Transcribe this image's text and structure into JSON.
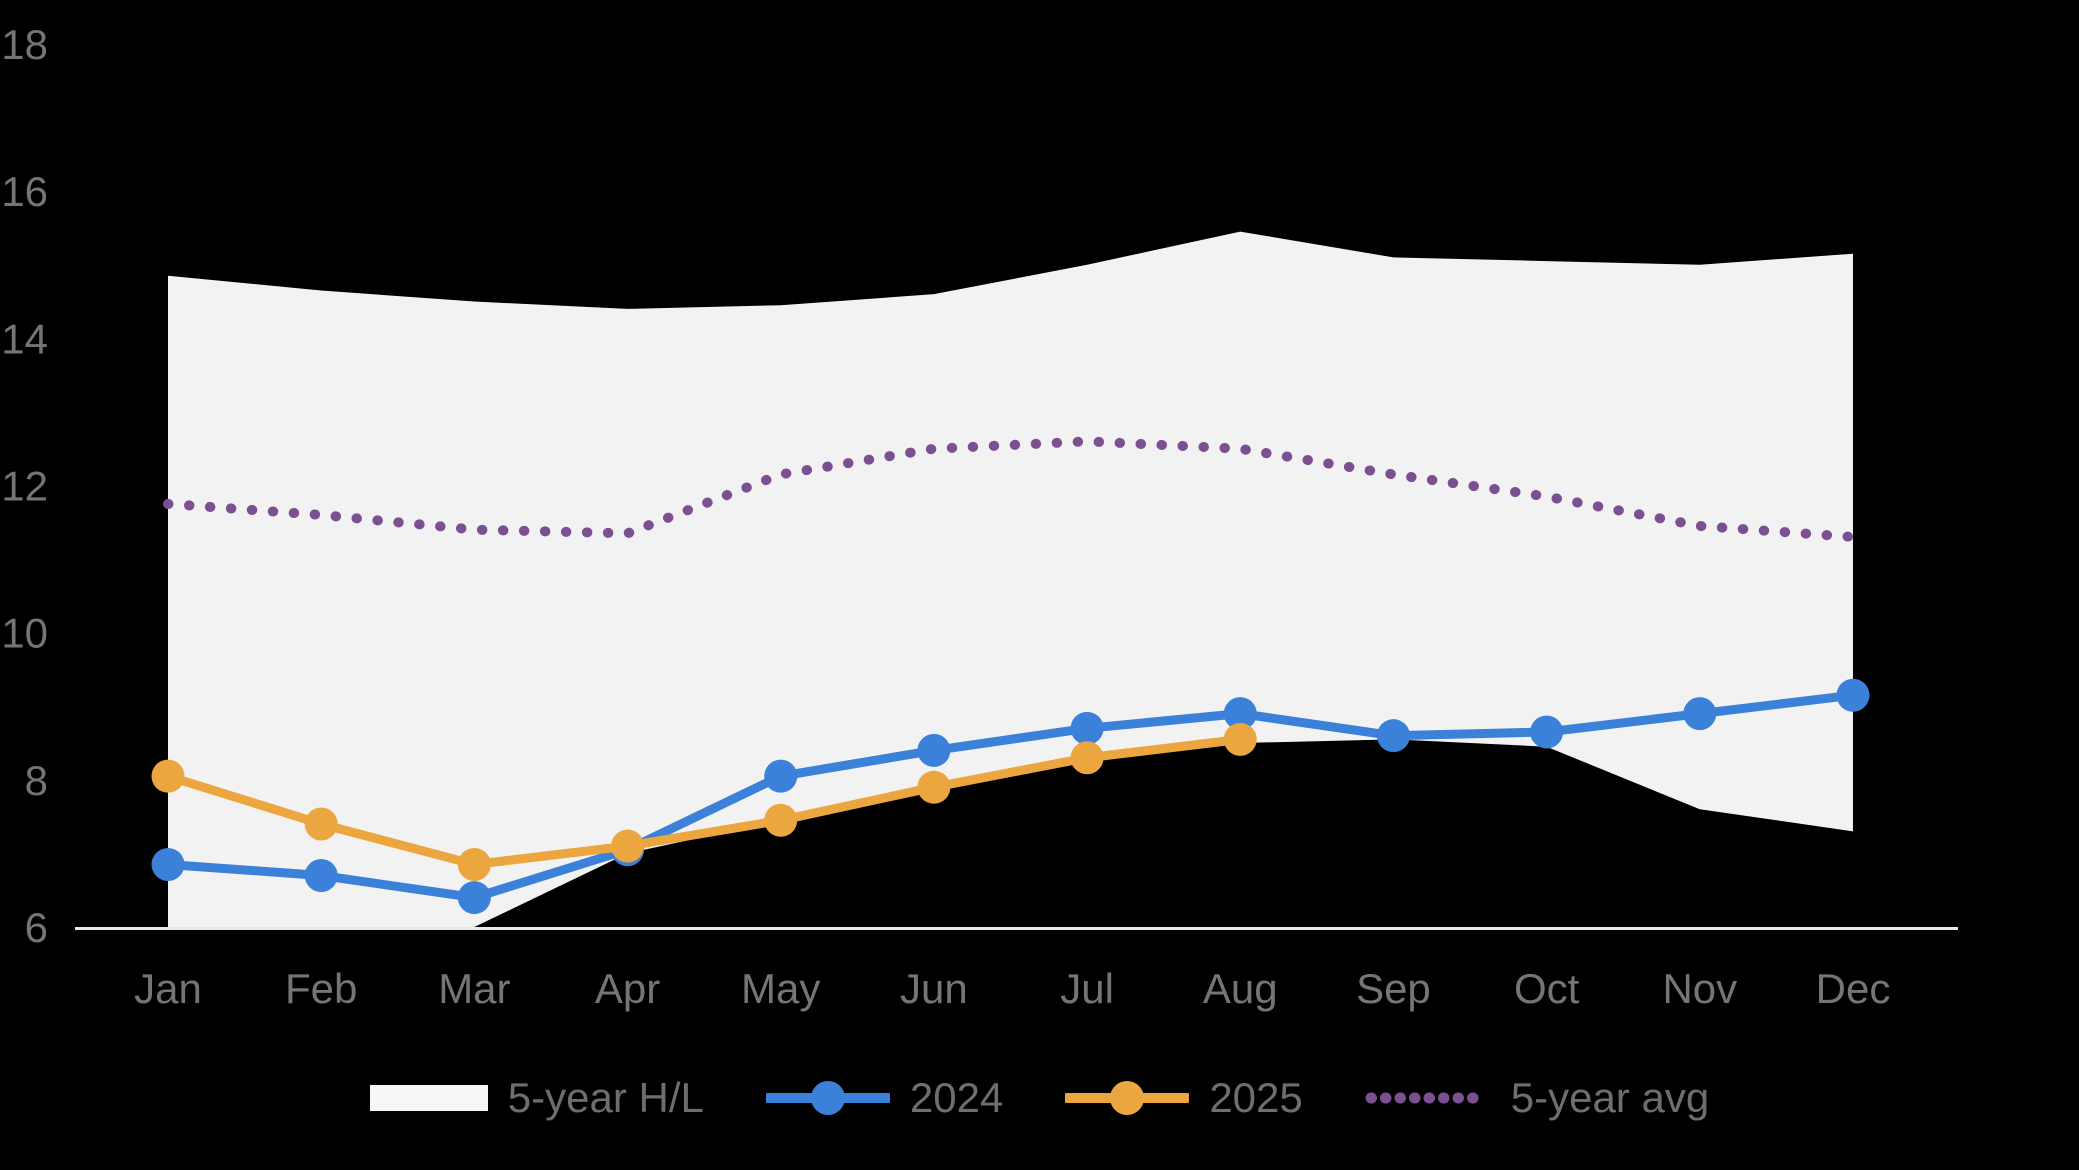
{
  "background": "#000000",
  "chart_data": {
    "type": "line",
    "title": "",
    "categories": [
      "Jan",
      "Feb",
      "Mar",
      "Apr",
      "May",
      "Jun",
      "Jul",
      "Aug",
      "Sep",
      "Oct",
      "Nov",
      "Dec"
    ],
    "yticks": [
      6,
      8,
      10,
      12,
      14,
      16,
      18
    ],
    "ylim": [
      6,
      18
    ],
    "grid": false,
    "legend_position": "bottom",
    "series": [
      {
        "name": "5-year H/L",
        "type": "band",
        "color": "#f2f2f2",
        "high": [
          14.85,
          14.65,
          14.5,
          14.4,
          14.45,
          14.6,
          15.0,
          15.45,
          15.1,
          15.05,
          15.0,
          15.15
        ],
        "low": [
          6.0,
          6.0,
          6.0,
          7.0,
          7.45,
          7.85,
          8.25,
          8.5,
          8.55,
          8.45,
          7.6,
          7.3
        ]
      },
      {
        "name": "2024",
        "type": "line",
        "color": "#3b80d9",
        "values": [
          6.85,
          6.7,
          6.4,
          7.05,
          8.05,
          8.4,
          8.7,
          8.9,
          8.6,
          8.65,
          8.9,
          9.15
        ]
      },
      {
        "name": "2025",
        "type": "line",
        "color": "#ebA63f",
        "values": [
          8.05,
          7.4,
          6.85,
          7.1,
          7.45,
          7.9,
          8.3,
          8.55,
          null,
          null,
          null,
          null
        ]
      },
      {
        "name": "5-year avg",
        "type": "dotted-line",
        "color": "#7b5090",
        "values": [
          11.75,
          11.6,
          11.4,
          11.35,
          12.15,
          12.5,
          12.6,
          12.5,
          12.15,
          11.85,
          11.45,
          11.3
        ]
      }
    ]
  },
  "axes": {
    "tick_label_color": "#757575",
    "axis_line_color": "#e8e8e8"
  },
  "legend": {
    "text_color": "#6e6e6e",
    "band_swatch_color": "#f7f7f7",
    "items": [
      {
        "label": "5-year H/L"
      },
      {
        "label": "2024"
      },
      {
        "label": "2025"
      },
      {
        "label": "5-year avg"
      }
    ]
  }
}
